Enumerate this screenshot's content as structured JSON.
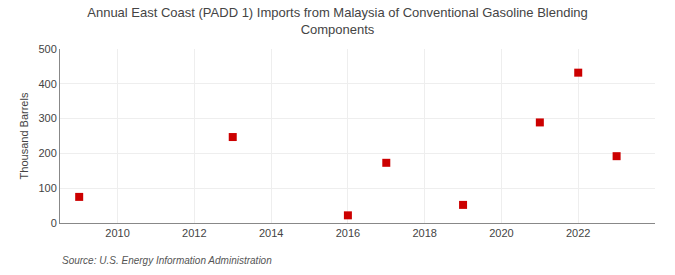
{
  "chart_data": {
    "type": "scatter",
    "title": "Annual East Coast (PADD 1) Imports from Malaysia of Conventional Gasoline Blending\nComponents",
    "ylabel": "Thousand Barrels",
    "annotations": [
      "Source: U.S. Energy Information Administration"
    ],
    "x": [
      2009,
      2013,
      2016,
      2017,
      2019,
      2021,
      2022,
      2023
    ],
    "values": [
      75,
      247,
      22,
      173,
      52,
      289,
      432,
      192
    ],
    "color": "#cc0000",
    "marker": "square",
    "xlim": [
      2008.5,
      2024
    ],
    "ylim": [
      0,
      500
    ],
    "xticks": [
      2010,
      2012,
      2014,
      2016,
      2018,
      2020,
      2022
    ],
    "yticks": [
      0,
      100,
      200,
      300,
      400,
      500
    ],
    "grid": true
  }
}
